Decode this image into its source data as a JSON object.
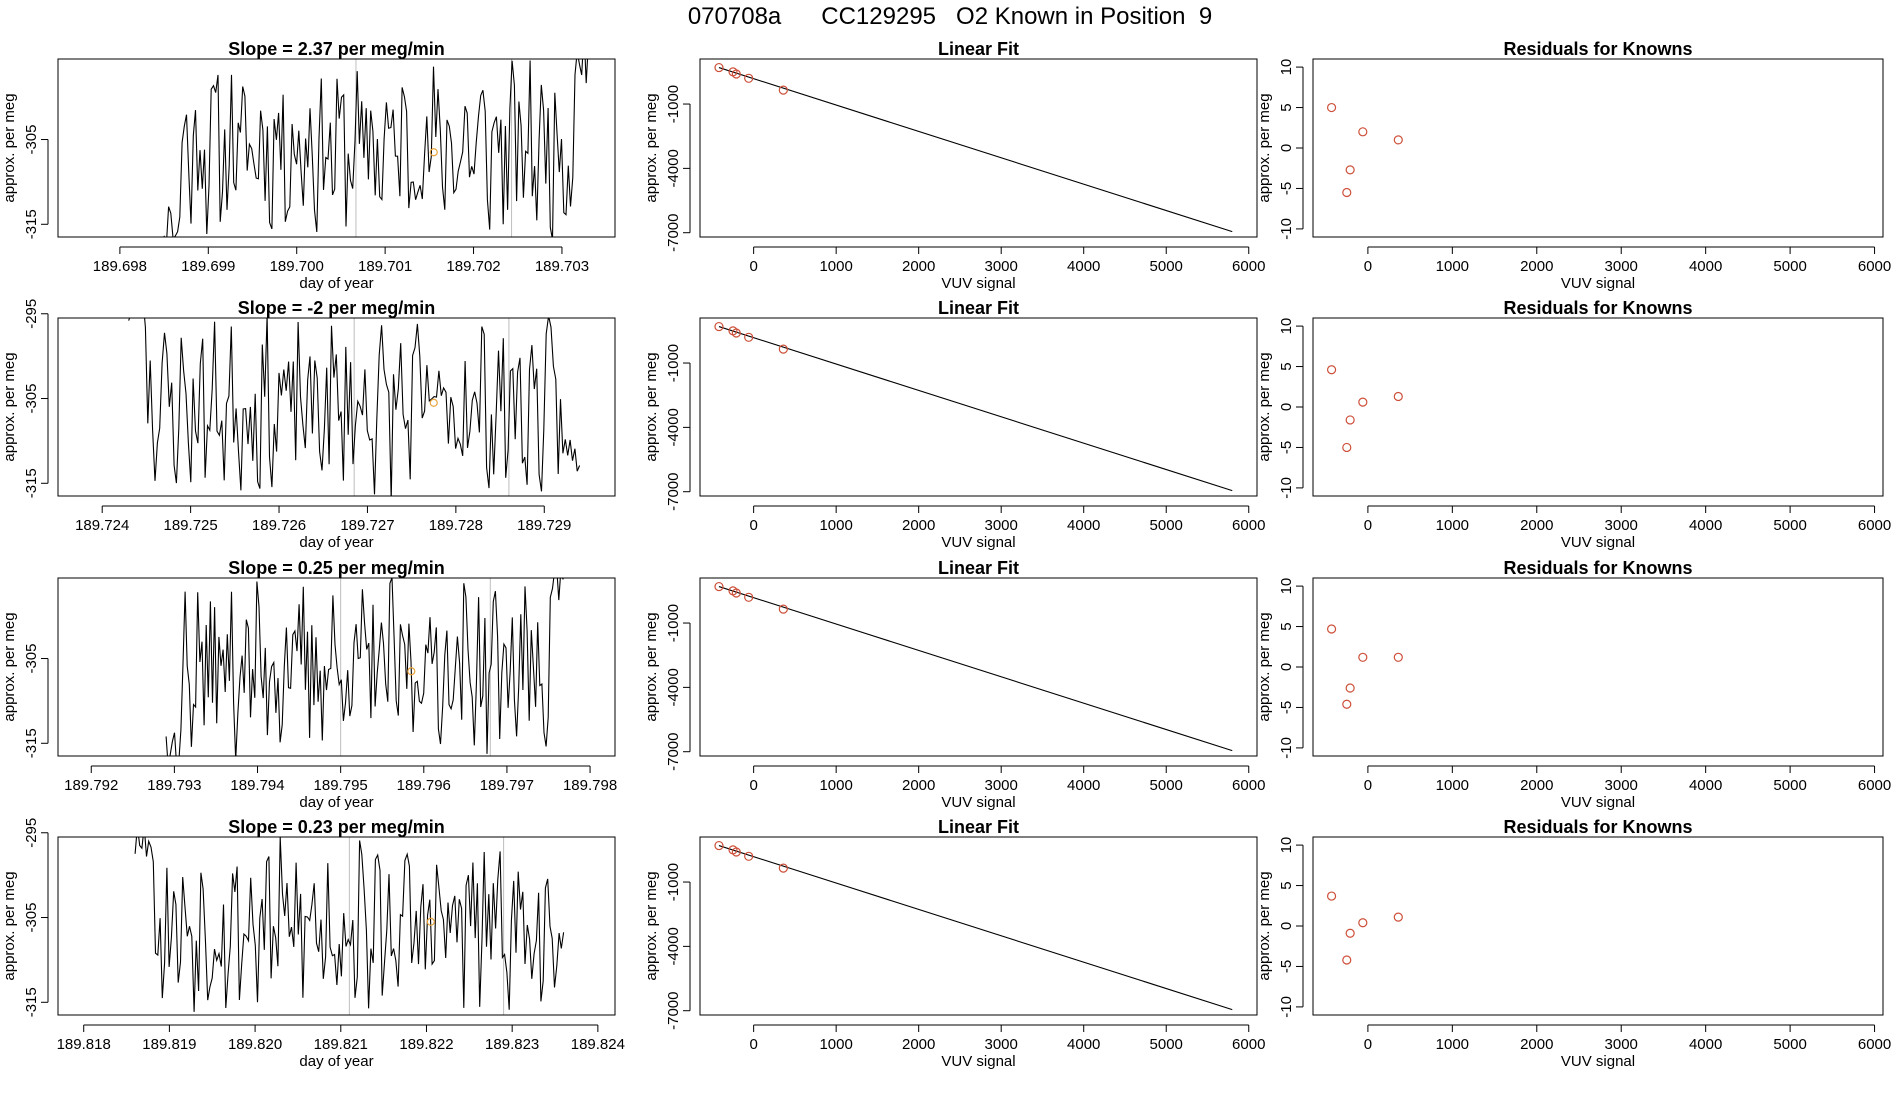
{
  "page": {
    "title": "070708a      CC129295   O2 Known in Position  9",
    "colors": {
      "axis": "#000000",
      "line": "#000000",
      "point": "#cd4f39",
      "marker": "#e8a33c",
      "vline": "#bebebe"
    }
  },
  "chart_data": [
    {
      "type": "line",
      "row": 0,
      "col": 0,
      "title": "Slope =  2.37  per meg/min",
      "xlabel": "day of year",
      "ylabel": "approx. per meg",
      "xlim": [
        189.6973,
        189.7036
      ],
      "ylim": [
        -316.5,
        -295.5
      ],
      "xticks": [
        189.698,
        189.699,
        189.7,
        189.701,
        189.702,
        189.703
      ],
      "xtick_labels": [
        "189.698",
        "189.699",
        "189.700",
        "189.701",
        "189.702",
        "189.703"
      ],
      "yticks": [
        -315,
        -305
      ],
      "ytick_labels": [
        "-315",
        "-305"
      ],
      "x_start": 189.6985,
      "x_end": 189.7033,
      "seed": 11,
      "vlines": [
        189.70067,
        189.70243
      ],
      "marker": {
        "x": 189.70155,
        "y": -306.5
      }
    },
    {
      "type": "scatter_fit",
      "row": 0,
      "col": 1,
      "title": "Linear Fit",
      "xlabel": "VUV signal",
      "ylabel": "approx. per meg",
      "xlim": [
        -650,
        6100
      ],
      "ylim": [
        -7200,
        1100
      ],
      "xticks": [
        0,
        1000,
        2000,
        3000,
        4000,
        5000,
        6000
      ],
      "xtick_labels": [
        "0",
        "1000",
        "2000",
        "3000",
        "4000",
        "5000",
        "6000"
      ],
      "yticks": [
        -1000,
        -4000,
        -7000
      ],
      "ytick_labels": [
        "-1000",
        "-4000",
        "-7000"
      ],
      "points": [
        {
          "x": -420,
          "y": 700
        },
        {
          "x": -250,
          "y": 500
        },
        {
          "x": -210,
          "y": 400
        },
        {
          "x": -60,
          "y": 200
        },
        {
          "x": 360,
          "y": -350
        }
      ],
      "fit": {
        "x": [
          -420,
          5800
        ],
        "y": [
          700,
          -6950
        ]
      }
    },
    {
      "type": "scatter",
      "row": 0,
      "col": 2,
      "title": "Residuals for Knowns",
      "xlabel": "VUV signal",
      "ylabel": "approx. per meg",
      "xlim": [
        -650,
        6100
      ],
      "ylim": [
        -11,
        11
      ],
      "xticks": [
        0,
        1000,
        2000,
        3000,
        4000,
        5000,
        6000
      ],
      "xtick_labels": [
        "0",
        "1000",
        "2000",
        "3000",
        "4000",
        "5000",
        "6000"
      ],
      "yticks": [
        -10,
        -5,
        0,
        5,
        10
      ],
      "ytick_labels": [
        "-10",
        "-5",
        "0",
        "5",
        "10"
      ],
      "points": [
        {
          "x": -430,
          "y": 5
        },
        {
          "x": -60,
          "y": 2
        },
        {
          "x": 360,
          "y": 1
        },
        {
          "x": -210,
          "y": -2.7
        },
        {
          "x": -250,
          "y": -5.5
        }
      ]
    },
    {
      "type": "line",
      "row": 1,
      "col": 0,
      "title": "Slope =  -2  per meg/min",
      "xlabel": "day of year",
      "ylabel": "approx. per meg",
      "xlim": [
        189.7235,
        189.7298
      ],
      "ylim": [
        -316.5,
        -295.5
      ],
      "xticks": [
        189.724,
        189.725,
        189.726,
        189.727,
        189.728,
        189.729
      ],
      "xtick_labels": [
        "189.724",
        "189.725",
        "189.726",
        "189.727",
        "189.728",
        "189.729"
      ],
      "yticks": [
        -315,
        -305,
        -295
      ],
      "ytick_labels": [
        "-315",
        "-305",
        "-295"
      ],
      "x_start": 189.7243,
      "x_end": 189.7294,
      "seed": 23,
      "vlines": [
        189.72685,
        189.7286
      ],
      "marker": {
        "x": 189.72775,
        "y": -305.5
      }
    },
    {
      "type": "scatter_fit",
      "row": 1,
      "col": 1,
      "title": "Linear Fit",
      "xlabel": "VUV signal",
      "ylabel": "approx. per meg",
      "xlim": [
        -650,
        6100
      ],
      "ylim": [
        -7200,
        1100
      ],
      "xticks": [
        0,
        1000,
        2000,
        3000,
        4000,
        5000,
        6000
      ],
      "xtick_labels": [
        "0",
        "1000",
        "2000",
        "3000",
        "4000",
        "5000",
        "6000"
      ],
      "yticks": [
        -1000,
        -4000,
        -7000
      ],
      "ytick_labels": [
        "-1000",
        "-4000",
        "-7000"
      ],
      "points": [
        {
          "x": -420,
          "y": 700
        },
        {
          "x": -250,
          "y": 500
        },
        {
          "x": -210,
          "y": 400
        },
        {
          "x": -60,
          "y": 200
        },
        {
          "x": 360,
          "y": -350
        }
      ],
      "fit": {
        "x": [
          -420,
          5800
        ],
        "y": [
          700,
          -6950
        ]
      }
    },
    {
      "type": "scatter",
      "row": 1,
      "col": 2,
      "title": "Residuals for Knowns",
      "xlabel": "VUV signal",
      "ylabel": "approx. per meg",
      "xlim": [
        -650,
        6100
      ],
      "ylim": [
        -11,
        11
      ],
      "xticks": [
        0,
        1000,
        2000,
        3000,
        4000,
        5000,
        6000
      ],
      "xtick_labels": [
        "0",
        "1000",
        "2000",
        "3000",
        "4000",
        "5000",
        "6000"
      ],
      "yticks": [
        -10,
        -5,
        0,
        5,
        10
      ],
      "ytick_labels": [
        "-10",
        "-5",
        "0",
        "5",
        "10"
      ],
      "points": [
        {
          "x": -430,
          "y": 4.6
        },
        {
          "x": -60,
          "y": 0.6
        },
        {
          "x": 360,
          "y": 1.3
        },
        {
          "x": -210,
          "y": -1.6
        },
        {
          "x": -250,
          "y": -5
        }
      ]
    },
    {
      "type": "line",
      "row": 2,
      "col": 0,
      "title": "Slope =  0.25  per meg/min",
      "xlabel": "day of year",
      "ylabel": "approx. per meg",
      "xlim": [
        189.7916,
        189.7983
      ],
      "ylim": [
        -316.5,
        -295.5
      ],
      "xticks": [
        189.792,
        189.793,
        189.794,
        189.795,
        189.796,
        189.797,
        189.798
      ],
      "xtick_labels": [
        "189.792",
        "189.793",
        "189.794",
        "189.795",
        "189.796",
        "189.797",
        "189.798"
      ],
      "yticks": [
        -315,
        -305
      ],
      "ytick_labels": [
        "-315",
        "-305"
      ],
      "x_start": 189.7929,
      "x_end": 189.7977,
      "seed": 37,
      "vlines": [
        189.795,
        189.7968
      ],
      "marker": {
        "x": 189.79585,
        "y": -306.5
      }
    },
    {
      "type": "scatter_fit",
      "row": 2,
      "col": 1,
      "title": "Linear Fit",
      "xlabel": "VUV signal",
      "ylabel": "approx. per meg",
      "xlim": [
        -650,
        6100
      ],
      "ylim": [
        -7200,
        1100
      ],
      "xticks": [
        0,
        1000,
        2000,
        3000,
        4000,
        5000,
        6000
      ],
      "xtick_labels": [
        "0",
        "1000",
        "2000",
        "3000",
        "4000",
        "5000",
        "6000"
      ],
      "yticks": [
        -1000,
        -4000,
        -7000
      ],
      "ytick_labels": [
        "-1000",
        "-4000",
        "-7000"
      ],
      "points": [
        {
          "x": -420,
          "y": 700
        },
        {
          "x": -250,
          "y": 500
        },
        {
          "x": -210,
          "y": 400
        },
        {
          "x": -60,
          "y": 200
        },
        {
          "x": 360,
          "y": -350
        }
      ],
      "fit": {
        "x": [
          -420,
          5800
        ],
        "y": [
          700,
          -6950
        ]
      }
    },
    {
      "type": "scatter",
      "row": 2,
      "col": 2,
      "title": "Residuals for Knowns",
      "xlabel": "VUV signal",
      "ylabel": "approx. per meg",
      "xlim": [
        -650,
        6100
      ],
      "ylim": [
        -11,
        11
      ],
      "xticks": [
        0,
        1000,
        2000,
        3000,
        4000,
        5000,
        6000
      ],
      "xtick_labels": [
        "0",
        "1000",
        "2000",
        "3000",
        "4000",
        "5000",
        "6000"
      ],
      "yticks": [
        -10,
        -5,
        0,
        5,
        10
      ],
      "ytick_labels": [
        "-10",
        "-5",
        "0",
        "5",
        "10"
      ],
      "points": [
        {
          "x": -430,
          "y": 4.7
        },
        {
          "x": -60,
          "y": 1.2
        },
        {
          "x": 360,
          "y": 1.2
        },
        {
          "x": -210,
          "y": -2.6
        },
        {
          "x": -250,
          "y": -4.6
        }
      ]
    },
    {
      "type": "line",
      "row": 3,
      "col": 0,
      "title": "Slope =  0.23  per meg/min",
      "xlabel": "day of year",
      "ylabel": "approx. per meg",
      "xlim": [
        189.8177,
        189.8242
      ],
      "ylim": [
        -316.5,
        -295.5
      ],
      "xticks": [
        189.818,
        189.819,
        189.82,
        189.821,
        189.822,
        189.823,
        189.824
      ],
      "xtick_labels": [
        "189.818",
        "189.819",
        "189.820",
        "189.821",
        "189.822",
        "189.823",
        "189.824"
      ],
      "yticks": [
        -315,
        -305,
        -295
      ],
      "ytick_labels": [
        "-315",
        "-305",
        "-295"
      ],
      "x_start": 189.8186,
      "x_end": 189.8236,
      "seed": 53,
      "vlines": [
        189.8211,
        189.8229
      ],
      "marker": {
        "x": 189.82205,
        "y": -305.5
      }
    },
    {
      "type": "scatter_fit",
      "row": 3,
      "col": 1,
      "title": "Linear Fit",
      "xlabel": "VUV signal",
      "ylabel": "approx. per meg",
      "xlim": [
        -650,
        6100
      ],
      "ylim": [
        -7200,
        1100
      ],
      "xticks": [
        0,
        1000,
        2000,
        3000,
        4000,
        5000,
        6000
      ],
      "xtick_labels": [
        "0",
        "1000",
        "2000",
        "3000",
        "4000",
        "5000",
        "6000"
      ],
      "yticks": [
        -1000,
        -4000,
        -7000
      ],
      "ytick_labels": [
        "-1000",
        "-4000",
        "-7000"
      ],
      "points": [
        {
          "x": -420,
          "y": 700
        },
        {
          "x": -250,
          "y": 500
        },
        {
          "x": -210,
          "y": 400
        },
        {
          "x": -60,
          "y": 200
        },
        {
          "x": 360,
          "y": -350
        }
      ],
      "fit": {
        "x": [
          -420,
          5800
        ],
        "y": [
          700,
          -6950
        ]
      }
    },
    {
      "type": "scatter",
      "row": 3,
      "col": 2,
      "title": "Residuals for Knowns",
      "xlabel": "VUV signal",
      "ylabel": "approx. per meg",
      "xlim": [
        -650,
        6100
      ],
      "ylim": [
        -11,
        11
      ],
      "xticks": [
        0,
        1000,
        2000,
        3000,
        4000,
        5000,
        6000
      ],
      "xtick_labels": [
        "0",
        "1000",
        "2000",
        "3000",
        "4000",
        "5000",
        "6000"
      ],
      "yticks": [
        -10,
        -5,
        0,
        5,
        10
      ],
      "ytick_labels": [
        "-10",
        "-5",
        "0",
        "5",
        "10"
      ],
      "points": [
        {
          "x": -430,
          "y": 3.7
        },
        {
          "x": -60,
          "y": 0.4
        },
        {
          "x": 360,
          "y": 1.1
        },
        {
          "x": -210,
          "y": -0.9
        },
        {
          "x": -250,
          "y": -4.2
        }
      ]
    }
  ]
}
